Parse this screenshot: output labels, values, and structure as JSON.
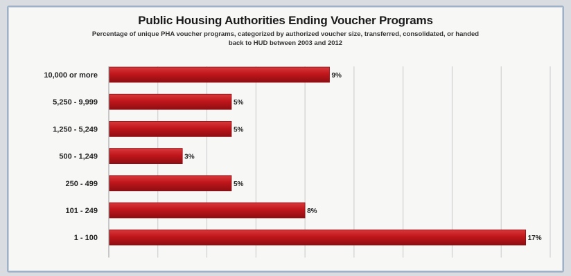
{
  "colors": {
    "bar": "#c0161b",
    "bar_edge": "#8e0e12",
    "grid": "#c9c9c9",
    "background": "#f7f7f6"
  },
  "chart_data": {
    "type": "bar",
    "orientation": "horizontal",
    "title": "Public Housing Authorities Ending Voucher Programs",
    "subtitle": "Percentage of unique PHA voucher programs, categorized by authorized voucher size, transferred, consolidated, or handed back to HUD between 2003 and 2012",
    "categories": [
      "10,000 or more",
      "5,250 - 9,999",
      "1,250 - 5,249",
      "500 - 1,249",
      "250 - 499",
      "101 - 249",
      "1 - 100"
    ],
    "values": [
      9,
      5,
      5,
      3,
      5,
      8,
      17
    ],
    "value_labels": [
      "9%",
      "5%",
      "5%",
      "3%",
      "5%",
      "8%",
      "17%"
    ],
    "xlim": [
      0,
      18
    ],
    "grid": true,
    "legend": "none"
  }
}
